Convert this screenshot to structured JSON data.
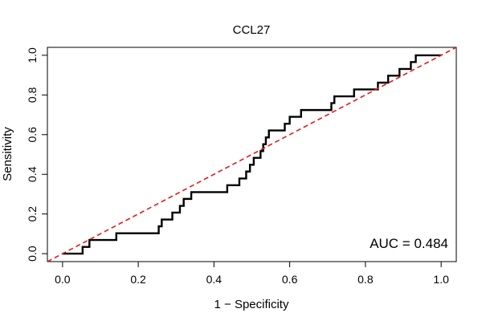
{
  "chart_data": {
    "type": "line",
    "title": "CCL27",
    "xlabel": "1 − Specificity",
    "ylabel": "Sensitivity",
    "xlim": [
      -0.04,
      1.04
    ],
    "ylim": [
      -0.04,
      1.04
    ],
    "x_ticks": [
      0.0,
      0.2,
      0.4,
      0.6,
      0.8,
      1.0
    ],
    "y_ticks": [
      0.0,
      0.2,
      0.4,
      0.6,
      0.8,
      1.0
    ],
    "x_tick_labels": [
      "0.0",
      "0.2",
      "0.4",
      "0.6",
      "0.8",
      "1.0"
    ],
    "y_tick_labels": [
      "0.0",
      "0.2",
      "0.4",
      "0.6",
      "0.8",
      "1.0"
    ],
    "grid": false,
    "annotation": "AUC = 0.484",
    "series": [
      {
        "color": "#000000",
        "style": "solid",
        "points": [
          [
            0.0,
            0.0
          ],
          [
            0.053,
            0.0
          ],
          [
            0.053,
            0.034
          ],
          [
            0.071,
            0.034
          ],
          [
            0.071,
            0.069
          ],
          [
            0.142,
            0.069
          ],
          [
            0.142,
            0.103
          ],
          [
            0.254,
            0.103
          ],
          [
            0.254,
            0.138
          ],
          [
            0.262,
            0.138
          ],
          [
            0.262,
            0.172
          ],
          [
            0.29,
            0.172
          ],
          [
            0.29,
            0.207
          ],
          [
            0.31,
            0.207
          ],
          [
            0.31,
            0.241
          ],
          [
            0.32,
            0.241
          ],
          [
            0.32,
            0.276
          ],
          [
            0.34,
            0.276
          ],
          [
            0.34,
            0.31
          ],
          [
            0.435,
            0.31
          ],
          [
            0.435,
            0.345
          ],
          [
            0.467,
            0.345
          ],
          [
            0.467,
            0.379
          ],
          [
            0.485,
            0.379
          ],
          [
            0.485,
            0.414
          ],
          [
            0.495,
            0.414
          ],
          [
            0.495,
            0.448
          ],
          [
            0.505,
            0.448
          ],
          [
            0.505,
            0.483
          ],
          [
            0.523,
            0.483
          ],
          [
            0.523,
            0.517
          ],
          [
            0.53,
            0.517
          ],
          [
            0.53,
            0.552
          ],
          [
            0.537,
            0.552
          ],
          [
            0.537,
            0.586
          ],
          [
            0.545,
            0.586
          ],
          [
            0.545,
            0.621
          ],
          [
            0.587,
            0.621
          ],
          [
            0.587,
            0.655
          ],
          [
            0.6,
            0.655
          ],
          [
            0.6,
            0.69
          ],
          [
            0.63,
            0.69
          ],
          [
            0.63,
            0.724
          ],
          [
            0.71,
            0.724
          ],
          [
            0.71,
            0.759
          ],
          [
            0.718,
            0.759
          ],
          [
            0.718,
            0.793
          ],
          [
            0.77,
            0.793
          ],
          [
            0.77,
            0.828
          ],
          [
            0.833,
            0.828
          ],
          [
            0.833,
            0.862
          ],
          [
            0.86,
            0.862
          ],
          [
            0.86,
            0.897
          ],
          [
            0.89,
            0.897
          ],
          [
            0.89,
            0.931
          ],
          [
            0.92,
            0.931
          ],
          [
            0.92,
            0.966
          ],
          [
            0.933,
            0.966
          ],
          [
            0.933,
            1.0
          ],
          [
            1.0,
            1.0
          ]
        ]
      },
      {
        "color": "#e41a1c",
        "style": "dashed",
        "points": [
          [
            -0.04,
            -0.04
          ],
          [
            1.04,
            1.04
          ]
        ]
      }
    ]
  }
}
